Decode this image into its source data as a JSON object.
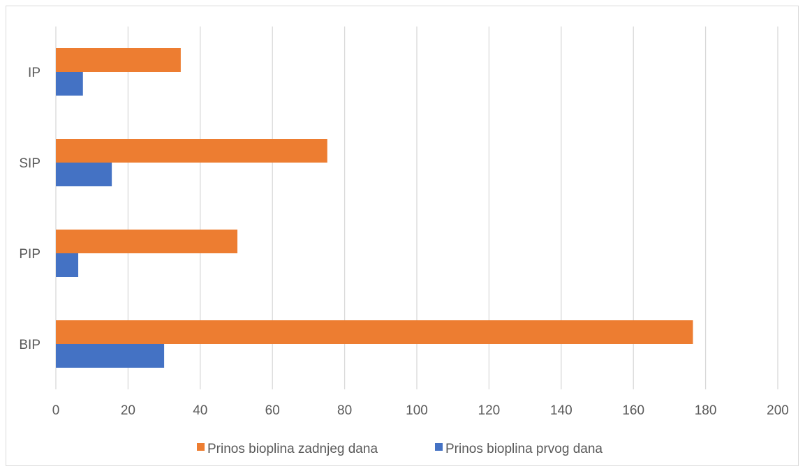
{
  "chart_data": {
    "type": "bar",
    "orientation": "horizontal",
    "categories": [
      "BIP",
      "PIP",
      "SIP",
      "IP"
    ],
    "series": [
      {
        "name": "Prinos bioplina prvog dana",
        "color": "#4472c4",
        "values": [
          30,
          6.2,
          15.5,
          7.5
        ]
      },
      {
        "name": "Prinos bioplina zadnjeg dana",
        "color": "#ed7d31",
        "values": [
          176.5,
          50.3,
          75.2,
          34.6
        ]
      }
    ],
    "x_ticks": [
      "0",
      "20",
      "40",
      "60",
      "80",
      "100",
      "120",
      "140",
      "160",
      "180",
      "200"
    ],
    "xlim": [
      0,
      200
    ],
    "grid": true,
    "grid_color": "#d9d9d9",
    "legend_position": "bottom",
    "legend_order": [
      "Prinos bioplina zadnjeg dana",
      "Prinos bioplina prvog dana"
    ],
    "title": "",
    "xlabel": "",
    "ylabel": ""
  }
}
